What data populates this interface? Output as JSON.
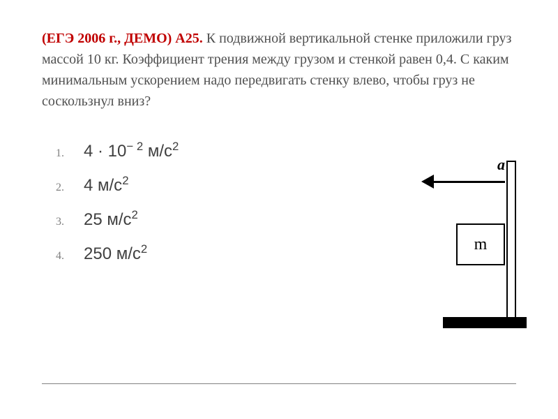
{
  "problem": {
    "id": "(ЕГЭ 2006 г., ДЕМО) А25.",
    "text_part1": " К подвижной вертикальной стенке приложили груз массой 10 кг. Коэффициент трения между грузом и стенкой равен  0,4.  С каким минимальным ускорением надо передвигать стенку влево, чтобы груз не соскользнул вниз?",
    "id_color": "#c00000",
    "text_color": "#505050",
    "fontsize_pt": 20
  },
  "options": {
    "number_color": "#808080",
    "value_color": "#404040",
    "value_fontsize_pt": 24,
    "items": [
      {
        "n": "1.",
        "prefix": "4 · 10",
        "exp": "− 2",
        "unit": "  м/с",
        "unit_exp": "2"
      },
      {
        "n": "2.",
        "prefix": "4 м/с",
        "exp": "",
        "unit": "",
        "unit_exp": "2"
      },
      {
        "n": "3.",
        "prefix": "25 м/с",
        "exp": "",
        "unit": "",
        "unit_exp": "2"
      },
      {
        "n": "4.",
        "prefix": "250 м/с",
        "exp": "",
        "unit": "",
        "unit_exp": "2"
      }
    ]
  },
  "diagram": {
    "block_label": "m",
    "arrow_label": "a",
    "wall_border_color": "#000000",
    "base_color": "#000000",
    "arrow_color": "#000000",
    "background_color": "#ffffff"
  }
}
